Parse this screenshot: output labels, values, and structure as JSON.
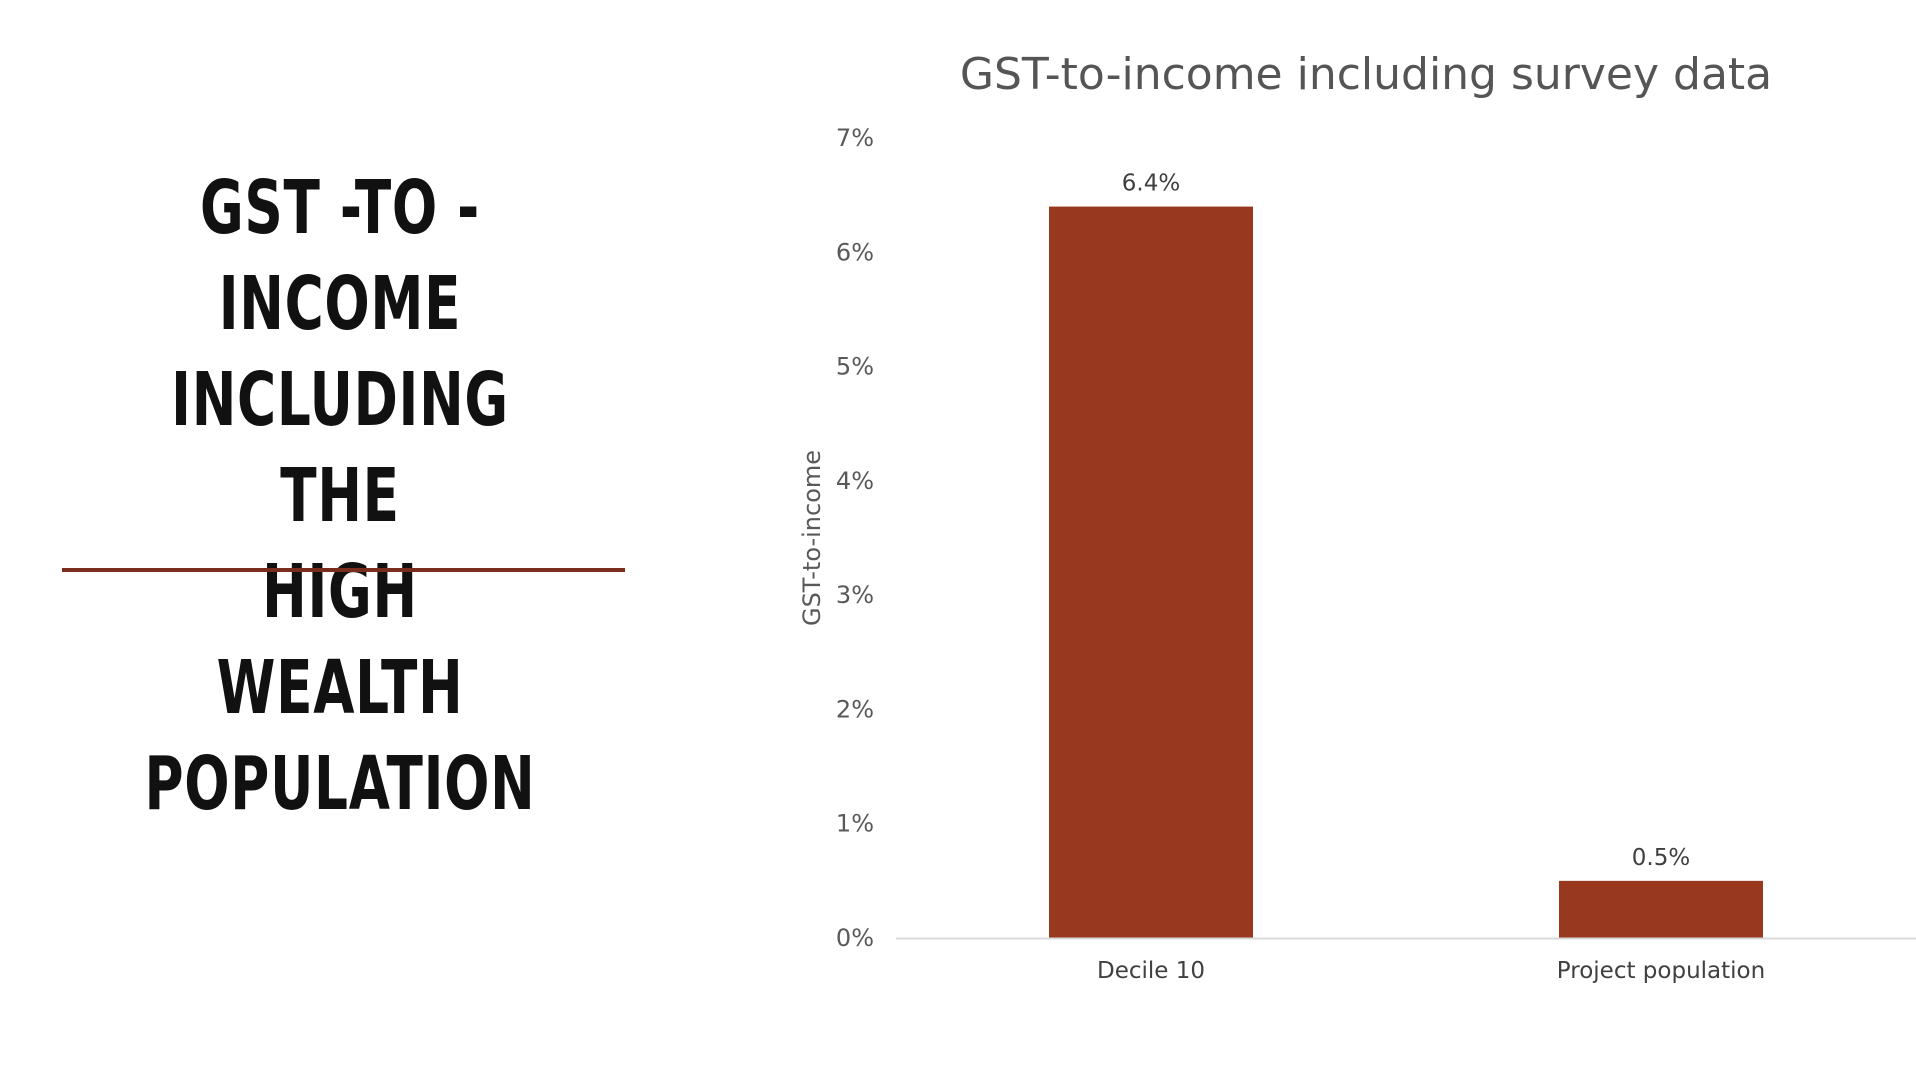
{
  "slide": {
    "title_lines": [
      "GST -TO -INCOME",
      "INCLUDING THE",
      "HIGH WEALTH",
      "POPULATION"
    ]
  },
  "colors": {
    "bar": "#98391f",
    "rule": "#7a2d1d",
    "axis": "#d9d9d9"
  },
  "chart_data": {
    "type": "bar",
    "title": "GST-to-income including survey data",
    "xlabel": "",
    "ylabel": "GST-to-income",
    "categories": [
      "Decile 10",
      "Project population"
    ],
    "series": [
      {
        "values": [
          6.4,
          0.5
        ]
      }
    ],
    "data_labels": [
      "6.4%",
      "0.5%"
    ],
    "ylim": [
      0,
      7
    ],
    "yticks": [
      0,
      1,
      2,
      3,
      4,
      5,
      6,
      7
    ],
    "ytick_labels": [
      "0%",
      "1%",
      "2%",
      "3%",
      "4%",
      "5%",
      "6%",
      "7%"
    ],
    "grid": false,
    "legend": "none"
  }
}
